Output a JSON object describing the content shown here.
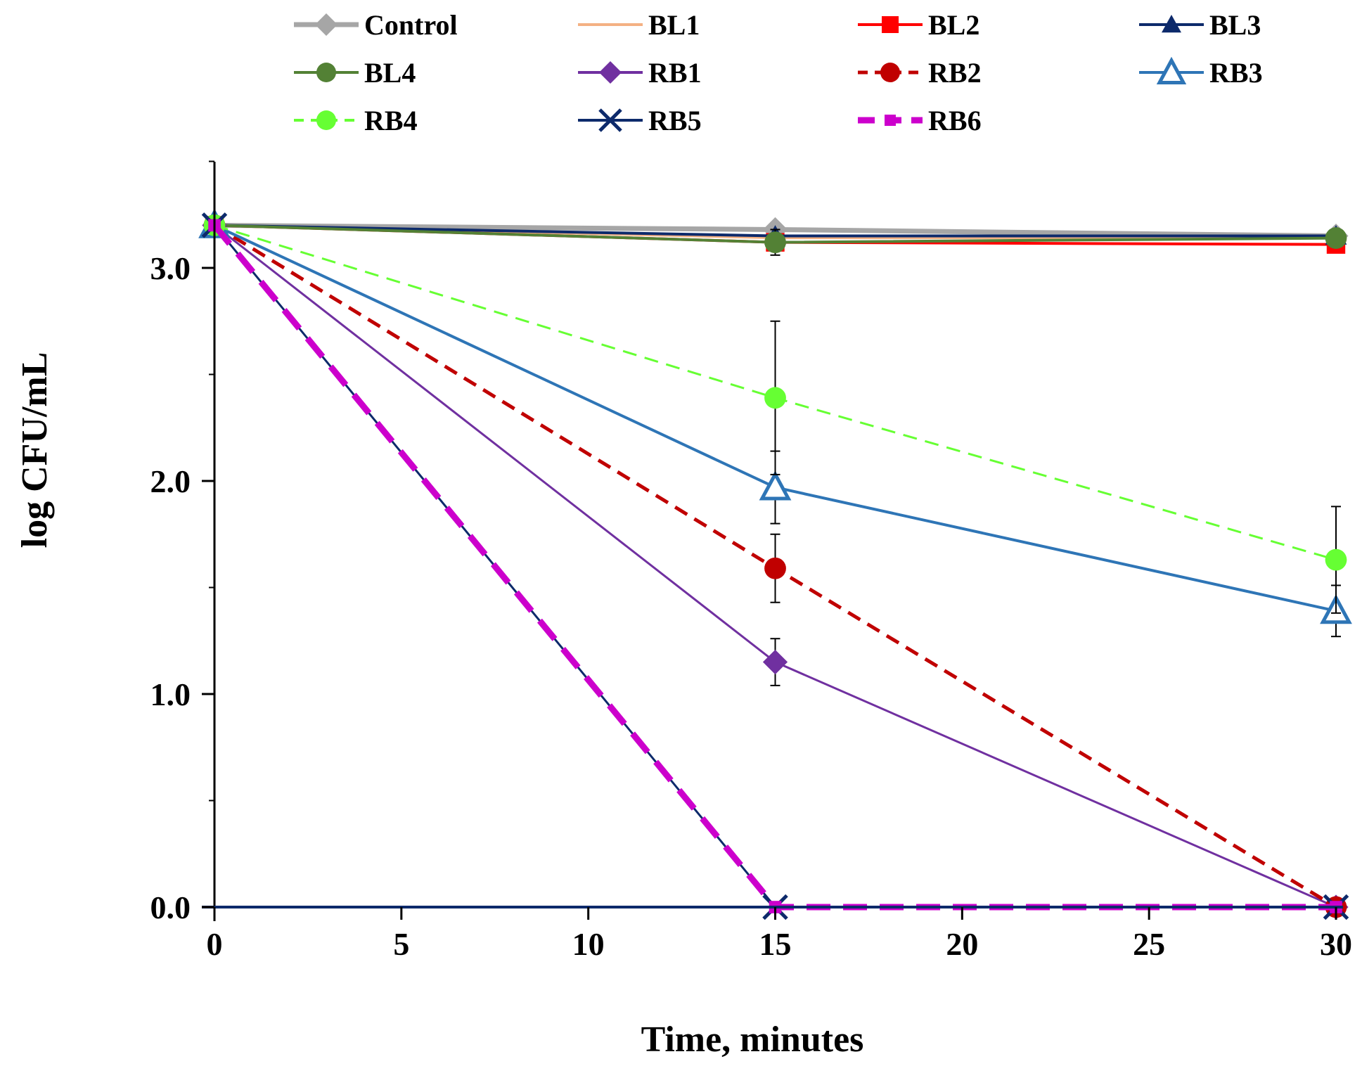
{
  "chart_data": {
    "type": "line",
    "title": "",
    "xlabel": "Time, minutes",
    "ylabel": "log CFU/mL",
    "xlim": [
      0,
      30
    ],
    "ylim": [
      0,
      3.5
    ],
    "x_ticks": [
      0,
      5,
      10,
      15,
      20,
      25,
      30
    ],
    "x_tick_labels": [
      "0",
      "5",
      "10",
      "15",
      "20",
      "25",
      "30"
    ],
    "y_ticks": [
      0,
      1,
      2,
      3
    ],
    "y_tick_labels": [
      "0.0",
      "1.0",
      "2.0",
      "3.0"
    ],
    "grid": false,
    "legend_position": "top",
    "x": [
      0,
      15,
      30
    ],
    "series": [
      {
        "name": "Control",
        "values": [
          3.2,
          3.18,
          3.15
        ],
        "errors": [
          0,
          0.02,
          0.02
        ],
        "color": "#A6A6A6",
        "marker": "diamond",
        "dash": "solid",
        "width": 7
      },
      {
        "name": "BL1",
        "values": [
          3.2,
          3.14,
          3.14
        ],
        "errors": [
          0,
          0,
          0
        ],
        "color": "#F4B183",
        "marker": "none",
        "dash": "solid",
        "width": 3
      },
      {
        "name": "BL2",
        "values": [
          3.2,
          3.12,
          3.11
        ],
        "errors": [
          0,
          0.03,
          0.02
        ],
        "color": "#FF0000",
        "marker": "square",
        "dash": "solid",
        "width": 4
      },
      {
        "name": "BL3",
        "values": [
          3.2,
          3.15,
          3.15
        ],
        "errors": [
          0,
          0.03,
          0.02
        ],
        "color": "#0D2A6B",
        "marker": "triangle",
        "dash": "solid",
        "width": 4
      },
      {
        "name": "BL4",
        "values": [
          3.2,
          3.12,
          3.14
        ],
        "errors": [
          0,
          0.06,
          0.02
        ],
        "color": "#538135",
        "marker": "circle",
        "dash": "solid",
        "width": 4
      },
      {
        "name": "RB1",
        "values": [
          3.2,
          1.15,
          0
        ],
        "errors": [
          0,
          0.11,
          0
        ],
        "color": "#7030A0",
        "marker": "diamond",
        "dash": "solid",
        "width": 3
      },
      {
        "name": "RB2",
        "values": [
          3.2,
          1.59,
          0
        ],
        "errors": [
          0,
          0.16,
          0
        ],
        "color": "#C00000",
        "marker": "circle",
        "dash": "dashed",
        "width": 5
      },
      {
        "name": "RB3",
        "values": [
          3.2,
          1.97,
          1.39
        ],
        "errors": [
          0,
          0.17,
          0.12
        ],
        "color": "#2E75B6",
        "marker": "triangle-open",
        "dash": "solid",
        "width": 4
      },
      {
        "name": "RB4",
        "values": [
          3.2,
          2.39,
          1.63
        ],
        "errors": [
          0,
          0.36,
          0.25
        ],
        "color": "#66FF33",
        "marker": "circle",
        "dash": "dashed",
        "width": 3
      },
      {
        "name": "RB5",
        "values": [
          3.2,
          0,
          0
        ],
        "errors": [
          0,
          0,
          0
        ],
        "color": "#0D2A6B",
        "marker": "x",
        "dash": "solid",
        "width": 3
      },
      {
        "name": "RB6",
        "values": [
          3.2,
          0,
          0
        ],
        "errors": [
          0,
          0,
          0
        ],
        "color": "#CC00CC",
        "marker": "square-small",
        "dash": "long-dash",
        "width": 9
      }
    ]
  }
}
